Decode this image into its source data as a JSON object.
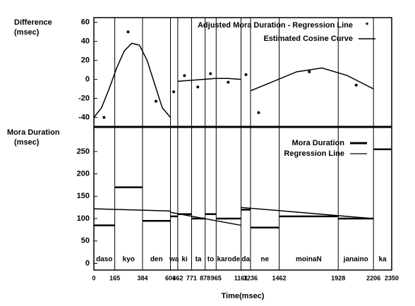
{
  "chart_data": [
    {
      "type": "line",
      "ylabel": [
        "Difference",
        "(msec)"
      ],
      "ylim": [
        -50,
        65
      ],
      "yticks": [
        -40,
        -20,
        0,
        20,
        40,
        60
      ],
      "xlim": [
        0,
        2350
      ],
      "series": [
        {
          "name": "Adjusted Mora Duration - Regression Line",
          "legend_marker": "*",
          "style": "markers",
          "color": "#000000",
          "x": [
            80,
            270,
            490,
            630,
            715,
            820,
            920,
            1060,
            1200,
            1300,
            1700,
            2070
          ],
          "values": [
            -40,
            50,
            -23,
            -13,
            4,
            -8,
            6,
            -3,
            5,
            -35,
            8,
            -6
          ]
        },
        {
          "name": "Estimated Cosine Curve",
          "style": "line",
          "color": "#000000",
          "x": [
            0,
            60,
            120,
            180,
            240,
            300,
            360,
            420,
            480,
            540,
            604,
            630,
            662,
            760,
            860,
            960,
            1060,
            1161,
            1200,
            1236,
            1400,
            1600,
            1800,
            2000,
            2206
          ],
          "values": [
            -40,
            -30,
            -10,
            12,
            30,
            38,
            36,
            20,
            -5,
            -30,
            -40,
            null,
            -2,
            -1,
            0,
            1,
            1,
            0,
            null,
            -12,
            -3,
            8,
            12,
            4,
            -10
          ]
        }
      ]
    },
    {
      "type": "step",
      "ylabel": [
        "Mora Duration",
        "(msec)"
      ],
      "xlabel": "Time(msec)",
      "ylim": [
        -15,
        305
      ],
      "yticks": [
        0,
        50,
        100,
        150,
        200,
        250
      ],
      "xlim": [
        0,
        2350
      ],
      "xticks": [
        0,
        165,
        384,
        604,
        662,
        771,
        878,
        965,
        1161,
        1236,
        1462,
        1928,
        2206,
        2350
      ],
      "categories": [
        "daso",
        "kyo",
        "den",
        "wa",
        "ki",
        "ta",
        "to",
        "karode",
        "da",
        "ne",
        "moinaN",
        "janaino",
        "ka"
      ],
      "series": [
        {
          "name": "Mora Duration",
          "style": "step",
          "color": "#000000",
          "values": [
            85,
            170,
            95,
            105,
            110,
            100,
            110,
            100,
            120,
            80,
            105,
            100,
            255
          ]
        },
        {
          "name": "Regression Line",
          "style": "line",
          "color": "#000000",
          "x": [
            0,
            604,
            630,
            604,
            1161,
            1200,
            1161,
            2206
          ],
          "values": [
            122,
            117,
            null,
            114,
            85,
            null,
            125,
            100
          ]
        }
      ]
    }
  ]
}
